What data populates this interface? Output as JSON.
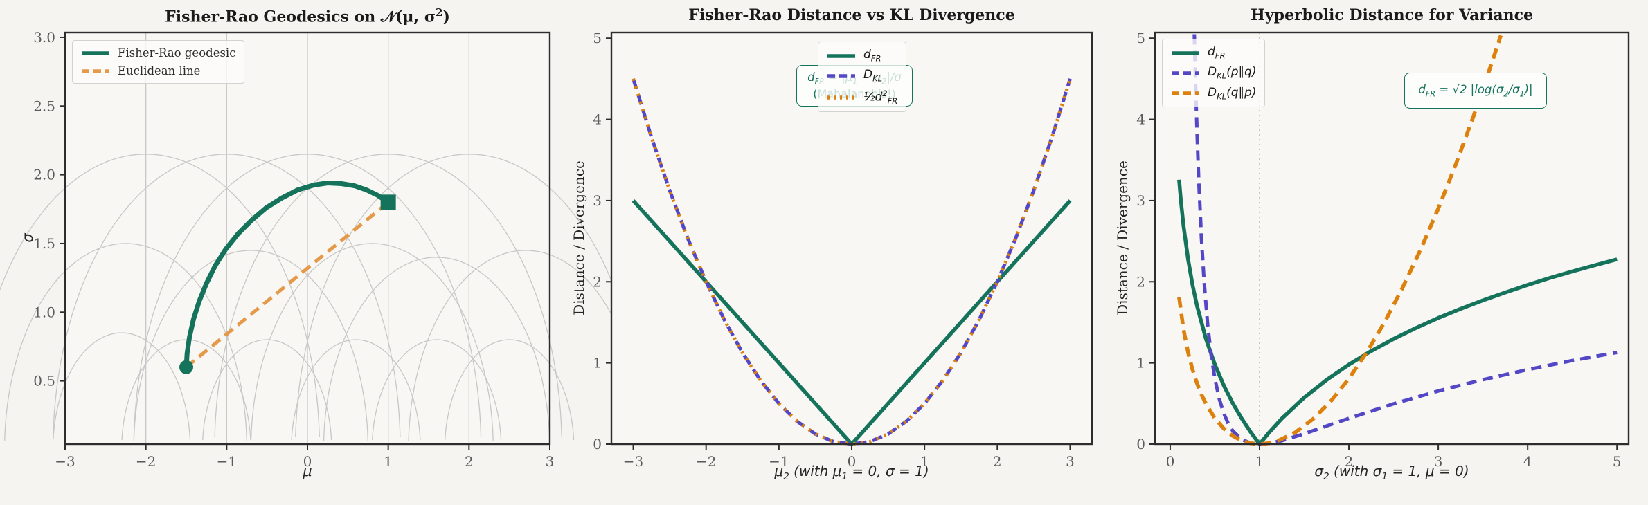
{
  "figure": {
    "bg": "#f5f4f1",
    "axes_bg": "#f8f7f4",
    "spine_color": "#2d2d2d",
    "tick_label_color": "#5a5a5a",
    "grid_gray": "#c7c7c7",
    "palette": {
      "teal": "#15735c",
      "purple": "#5447c5",
      "orange": "#dc800e",
      "light_orange": "#e49a4a"
    }
  },
  "chart_data": [
    {
      "type": "line",
      "title": "Fisher-Rao Geodesics on 𝒩(μ, σ^{2})",
      "xlabel": "μ",
      "ylabel": "σ",
      "xlim": [
        -3,
        3
      ],
      "ylim": [
        0.04,
        3.035
      ],
      "xticks": [
        -3,
        -2,
        -1,
        0,
        1,
        2,
        3
      ],
      "yticks": [
        0.5,
        1.0,
        1.5,
        2.0,
        2.5,
        3.0
      ],
      "ytick_decimals": 1,
      "grid_geodesics": {
        "verticals": [
          -2,
          -1,
          0,
          1,
          2
        ],
        "arcs": [
          {
            "c": -2,
            "r": 2.15
          },
          {
            "c": -1,
            "r": 2.15
          },
          {
            "c": 0,
            "r": 2.15
          },
          {
            "c": 1,
            "r": 2.15
          },
          {
            "c": 2,
            "r": 2.15
          },
          {
            "c": -2.25,
            "r": 1.5
          },
          {
            "c": -0.7,
            "r": 1.45
          },
          {
            "c": 0.8,
            "r": 1.5
          },
          {
            "c": 1.6,
            "r": 1.4
          },
          {
            "c": 2.7,
            "r": 1.45
          },
          {
            "c": -2.3,
            "r": 0.85
          },
          {
            "c": -1.5,
            "r": 0.8
          },
          {
            "c": -0.5,
            "r": 0.8
          },
          {
            "c": 0.6,
            "r": 0.8
          },
          {
            "c": 1.6,
            "r": 0.8
          },
          {
            "c": 2.5,
            "r": 0.8
          }
        ]
      },
      "series": [
        {
          "name": "fisher-rao-geodesic",
          "label": "Fisher-Rao geodesic",
          "color": "teal",
          "style": "solid",
          "width": 7,
          "x": [
            -1.5,
            -1.49,
            -1.46,
            -1.41,
            -1.34,
            -1.25,
            -1.14,
            -1.01,
            -0.86,
            -0.69,
            -0.51,
            -0.32,
            -0.12,
            0.08,
            0.25,
            0.42,
            0.58,
            0.73,
            0.87,
            1.0
          ],
          "y": [
            0.6,
            0.7,
            0.82,
            0.95,
            1.08,
            1.21,
            1.34,
            1.46,
            1.57,
            1.67,
            1.76,
            1.83,
            1.89,
            1.925,
            1.94,
            1.935,
            1.92,
            1.89,
            1.85,
            1.8
          ]
        },
        {
          "name": "euclidean-line",
          "label": "Euclidean line",
          "color": "light_orange",
          "style": "dashed",
          "width": 5,
          "x": [
            -1.5,
            1.0
          ],
          "y": [
            0.6,
            1.8
          ]
        }
      ],
      "markers": [
        {
          "shape": "circle",
          "x": -1.5,
          "y": 0.6,
          "size": 20,
          "color": "teal",
          "name": "start-point-marker"
        },
        {
          "shape": "square",
          "x": 1.0,
          "y": 1.8,
          "size": 22,
          "color": "teal",
          "name": "end-point-marker"
        }
      ],
      "legend": {
        "position": "upper-left",
        "entries": [
          {
            "label": "Fisher-Rao geodesic",
            "color": "teal",
            "style": "solid"
          },
          {
            "label": "Euclidean line",
            "color": "light_orange",
            "style": "dashed"
          }
        ]
      }
    },
    {
      "type": "line",
      "title": "Fisher-Rao Distance vs KL Divergence",
      "xlabel": "μ_{2} (with μ_{1} = 0, σ = 1)",
      "ylabel": "Distance / Divergence",
      "xlim": [
        -3.3,
        3.3
      ],
      "ylim": [
        0,
        5.07
      ],
      "xticks": [
        -3,
        -2,
        -1,
        0,
        1,
        2,
        3
      ],
      "yticks": [
        0,
        1,
        2,
        3,
        4,
        5
      ],
      "ytick_decimals": 0,
      "series": [
        {
          "name": "d-fr",
          "label": "d_{FR}",
          "color": "teal",
          "style": "solid",
          "width": 5.5,
          "x": [
            -3,
            -2.5,
            -2,
            -1.5,
            -1,
            -0.5,
            0,
            0.5,
            1,
            1.5,
            2,
            2.5,
            3
          ],
          "y": [
            3,
            2.5,
            2,
            1.5,
            1,
            0.5,
            0,
            0.5,
            1,
            1.5,
            2,
            2.5,
            3
          ]
        },
        {
          "name": "d-kl",
          "label": "D_{KL}",
          "color": "purple",
          "style": "dashed",
          "width": 5,
          "x": [
            -3,
            -2.75,
            -2.5,
            -2.25,
            -2,
            -1.75,
            -1.5,
            -1.25,
            -1,
            -0.75,
            -0.5,
            -0.25,
            0,
            0.25,
            0.5,
            0.75,
            1,
            1.25,
            1.5,
            1.75,
            2,
            2.25,
            2.5,
            2.75,
            3
          ],
          "y": [
            4.5,
            3.781,
            3.125,
            2.531,
            2,
            1.531,
            1.125,
            0.781,
            0.5,
            0.281,
            0.125,
            0.031,
            0,
            0.031,
            0.125,
            0.281,
            0.5,
            0.781,
            1.125,
            1.531,
            2,
            2.531,
            3.125,
            3.781,
            4.5
          ]
        },
        {
          "name": "half-d-fr-squared",
          "label": "½d^{2}_{FR}",
          "color": "orange",
          "style": "dotted",
          "width": 5,
          "x": [
            -3,
            -2.75,
            -2.5,
            -2.25,
            -2,
            -1.75,
            -1.5,
            -1.25,
            -1,
            -0.75,
            -0.5,
            -0.25,
            0,
            0.25,
            0.5,
            0.75,
            1,
            1.25,
            1.5,
            1.75,
            2,
            2.25,
            2.5,
            2.75,
            3
          ],
          "y": [
            4.5,
            3.781,
            3.125,
            2.531,
            2,
            1.531,
            1.125,
            0.781,
            0.5,
            0.281,
            0.125,
            0.031,
            0,
            0.031,
            0.125,
            0.281,
            0.5,
            0.781,
            1.125,
            1.531,
            2,
            2.531,
            3.125,
            3.781,
            4.5
          ]
        }
      ],
      "legend": {
        "position": "upper-center",
        "entries": [
          {
            "label": "d_{FR}",
            "color": "teal",
            "style": "solid"
          },
          {
            "label": "D_{KL}",
            "color": "purple",
            "style": "dashed"
          },
          {
            "label": "½d^{2}_{FR}",
            "color": "orange",
            "style": "dotted"
          }
        ]
      },
      "annotation": {
        "lines": [
          "d_{FR} = |μ_{1} − μ_{2}|/σ",
          "(Mahalanobis!)"
        ]
      }
    },
    {
      "type": "line",
      "title": "Hyperbolic Distance for Variance",
      "xlabel": "σ_{2} (with σ_{1} = 1, μ = 0)",
      "ylabel": "Distance / Divergence",
      "xlim": [
        -0.17,
        5.13
      ],
      "ylim": [
        0,
        5.07
      ],
      "xticks": [
        0,
        1,
        2,
        3,
        4,
        5
      ],
      "yticks": [
        0,
        1,
        2,
        3,
        4,
        5
      ],
      "ytick_decimals": 0,
      "vline": {
        "x": 1,
        "style": "dotted"
      },
      "series": [
        {
          "name": "d-fr",
          "label": "d_{FR}",
          "color": "teal",
          "style": "solid",
          "width": 5.5,
          "x": [
            0.1,
            0.12,
            0.15,
            0.2,
            0.25,
            0.3,
            0.4,
            0.5,
            0.6,
            0.7,
            0.8,
            0.9,
            1.0,
            1.1,
            1.25,
            1.5,
            1.75,
            2.0,
            2.25,
            2.5,
            2.75,
            3.0,
            3.25,
            3.5,
            3.75,
            4.0,
            4.25,
            4.5,
            4.75,
            5.0
          ],
          "y": [
            3.257,
            2.999,
            2.683,
            2.276,
            1.961,
            1.703,
            1.296,
            0.98,
            0.722,
            0.504,
            0.316,
            0.149,
            0,
            0.135,
            0.316,
            0.573,
            0.791,
            0.98,
            1.147,
            1.296,
            1.431,
            1.554,
            1.667,
            1.771,
            1.868,
            1.961,
            2.047,
            2.127,
            2.203,
            2.276
          ]
        },
        {
          "name": "d-kl-p-q",
          "label": "D_{KL}(p∥q)",
          "color": "purple",
          "style": "dashed",
          "width": 5,
          "x": [
            0.27,
            0.28,
            0.29,
            0.3,
            0.32,
            0.35,
            0.38,
            0.42,
            0.46,
            0.5,
            0.55,
            0.6,
            0.65,
            0.7,
            0.8,
            0.9,
            1.0,
            1.1,
            1.25,
            1.5,
            1.75,
            2.0,
            2.5,
            3.0,
            3.5,
            4.0,
            4.5,
            5.0
          ],
          "y": [
            5.049,
            4.605,
            4.207,
            3.852,
            3.243,
            2.532,
            1.995,
            1.467,
            1.086,
            0.807,
            0.555,
            0.378,
            0.253,
            0.164,
            0.058,
            0.012,
            0,
            0.009,
            0.043,
            0.128,
            0.223,
            0.318,
            0.496,
            0.654,
            0.794,
            0.918,
            1.029,
            1.129
          ]
        },
        {
          "name": "d-kl-q-p",
          "label": "D_{KL}(q∥p)",
          "color": "orange",
          "style": "dashed",
          "width": 5.5,
          "x": [
            0.1,
            0.15,
            0.2,
            0.25,
            0.3,
            0.35,
            0.4,
            0.5,
            0.6,
            0.7,
            0.8,
            0.9,
            1.0,
            1.1,
            1.2,
            1.4,
            1.6,
            1.8,
            2.0,
            2.2,
            2.4,
            2.6,
            2.8,
            3.0,
            3.2,
            3.4,
            3.5,
            3.6,
            3.7
          ],
          "y": [
            1.808,
            1.408,
            1.129,
            0.918,
            0.749,
            0.611,
            0.496,
            0.318,
            0.191,
            0.102,
            0.043,
            0.01,
            0,
            0.01,
            0.038,
            0.144,
            0.31,
            0.532,
            0.807,
            1.132,
            1.505,
            1.925,
            2.39,
            2.901,
            3.457,
            4.056,
            4.372,
            4.699,
            5.034
          ]
        }
      ],
      "legend": {
        "position": "upper-left",
        "entries": [
          {
            "label": "d_{FR}",
            "color": "teal",
            "style": "solid"
          },
          {
            "label": "D_{KL}(p∥q)",
            "color": "purple",
            "style": "dashed"
          },
          {
            "label": "D_{KL}(q∥p)",
            "color": "orange",
            "style": "dashed"
          }
        ]
      },
      "annotation": {
        "lines": [
          "d_{FR} = √2 |log(σ_{2}/σ_{1})|"
        ]
      }
    }
  ]
}
